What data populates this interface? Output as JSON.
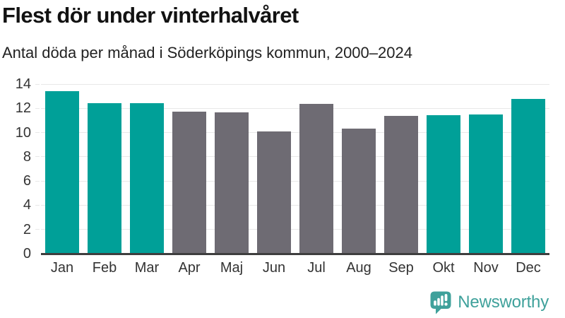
{
  "title": "Flest dör under vinterhalvåret",
  "subtitle": "Antal döda per månad i Söderköpings kommun, 2000–2024",
  "branding": {
    "name": "Newsworthy",
    "logo_icon": "newsworthy-speech-bubble-bar-chart-icon",
    "color": "#3FA19B"
  },
  "colors": {
    "highlight_bar": "#00A098",
    "muted_bar": "#6E6B73",
    "gridline": "#E8E8E8",
    "axis_line": "#3E3E3E",
    "tick_text": "#333333",
    "title_text": "#121212"
  },
  "chart_data": {
    "type": "bar",
    "title": "Flest dör under vinterhalvåret",
    "subtitle": "Antal döda per månad i Söderköpings kommun, 2000–2024",
    "xlabel": "",
    "ylabel": "",
    "categories": [
      "Jan",
      "Feb",
      "Mar",
      "Apr",
      "Maj",
      "Jun",
      "Jul",
      "Aug",
      "Sep",
      "Okt",
      "Nov",
      "Dec"
    ],
    "values": [
      13.4,
      12.4,
      12.45,
      11.75,
      11.65,
      10.1,
      12.35,
      10.3,
      11.35,
      11.45,
      11.5,
      12.75
    ],
    "highlighted": [
      true,
      true,
      true,
      false,
      false,
      false,
      false,
      false,
      false,
      true,
      true,
      true
    ],
    "ylim": [
      0,
      14
    ],
    "yticks": [
      0,
      2,
      4,
      6,
      8,
      10,
      12,
      14
    ],
    "grid": true,
    "legend": "none"
  }
}
